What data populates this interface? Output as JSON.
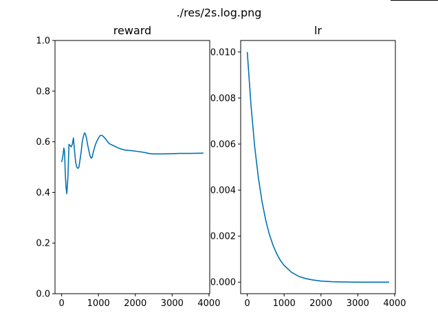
{
  "figure_title": "./res/2s.log.png",
  "line_color": "#0072b2",
  "chart_data": [
    {
      "type": "line",
      "title": "reward",
      "xlabel": "",
      "ylabel": "",
      "xlim": [
        -180,
        4020
      ],
      "ylim": [
        0.0,
        1.0
      ],
      "x_ticks": [
        0,
        1000,
        2000,
        3000,
        4000
      ],
      "x_tick_labels": [
        "0",
        "1000",
        "2000",
        "3000",
        "4000"
      ],
      "y_ticks": [
        0.0,
        0.2,
        0.4,
        0.6,
        0.8,
        1.0
      ],
      "y_tick_labels": [
        "0.0",
        "0.2",
        "0.4",
        "0.6",
        "0.8",
        "1.0"
      ],
      "grid": false,
      "series": [
        {
          "x": [
            0,
            30,
            60,
            80,
            100,
            120,
            140,
            170,
            200,
            230,
            260,
            290,
            320,
            350,
            380,
            410,
            440,
            470,
            500,
            530,
            560,
            590,
            620,
            650,
            680,
            710,
            740,
            770,
            800,
            830,
            860,
            890,
            920,
            950,
            1000,
            1050,
            1100,
            1150,
            1200,
            1250,
            1300,
            1400,
            1500,
            1600,
            1700,
            1800,
            1900,
            2000,
            2100,
            2200,
            2300,
            2400,
            2500,
            2700,
            3000,
            3200,
            3500,
            3850
          ],
          "y": [
            0.52,
            0.54,
            0.575,
            0.56,
            0.47,
            0.42,
            0.395,
            0.46,
            0.59,
            0.585,
            0.58,
            0.59,
            0.615,
            0.565,
            0.52,
            0.5,
            0.495,
            0.5,
            0.53,
            0.56,
            0.6,
            0.62,
            0.635,
            0.63,
            0.61,
            0.585,
            0.565,
            0.545,
            0.535,
            0.54,
            0.56,
            0.575,
            0.59,
            0.6,
            0.615,
            0.625,
            0.625,
            0.618,
            0.61,
            0.6,
            0.592,
            0.585,
            0.578,
            0.572,
            0.568,
            0.566,
            0.565,
            0.563,
            0.561,
            0.559,
            0.556,
            0.553,
            0.552,
            0.552,
            0.553,
            0.554,
            0.554,
            0.555
          ]
        }
      ]
    },
    {
      "type": "line",
      "title": "lr",
      "xlabel": "",
      "ylabel": "",
      "xlim": [
        -180,
        4020
      ],
      "ylim": [
        -0.0005,
        0.0105
      ],
      "x_ticks": [
        0,
        1000,
        2000,
        3000,
        4000
      ],
      "x_tick_labels": [
        "0",
        "1000",
        "2000",
        "3000",
        "4000"
      ],
      "y_ticks": [
        0.0,
        0.002,
        0.004,
        0.006,
        0.008,
        0.01
      ],
      "y_tick_labels": [
        "0.000",
        "0.002",
        "0.004",
        "0.006",
        "0.008",
        "0.010"
      ],
      "grid": false,
      "series": [
        {
          "x": [
            0,
            100,
            200,
            300,
            400,
            500,
            600,
            700,
            800,
            900,
            1000,
            1200,
            1400,
            1600,
            1800,
            2000,
            2300,
            2600,
            3000,
            3400,
            3850
          ],
          "y": [
            0.01,
            0.0077,
            0.0059,
            0.00455,
            0.0035,
            0.0027,
            0.00207,
            0.0016,
            0.00123,
            0.00094,
            0.00073,
            0.00043,
            0.00025,
            0.00015,
            9e-05,
            5e-05,
            2e-05,
            1e-05,
            0.0,
            0.0,
            0.0
          ]
        }
      ]
    }
  ]
}
